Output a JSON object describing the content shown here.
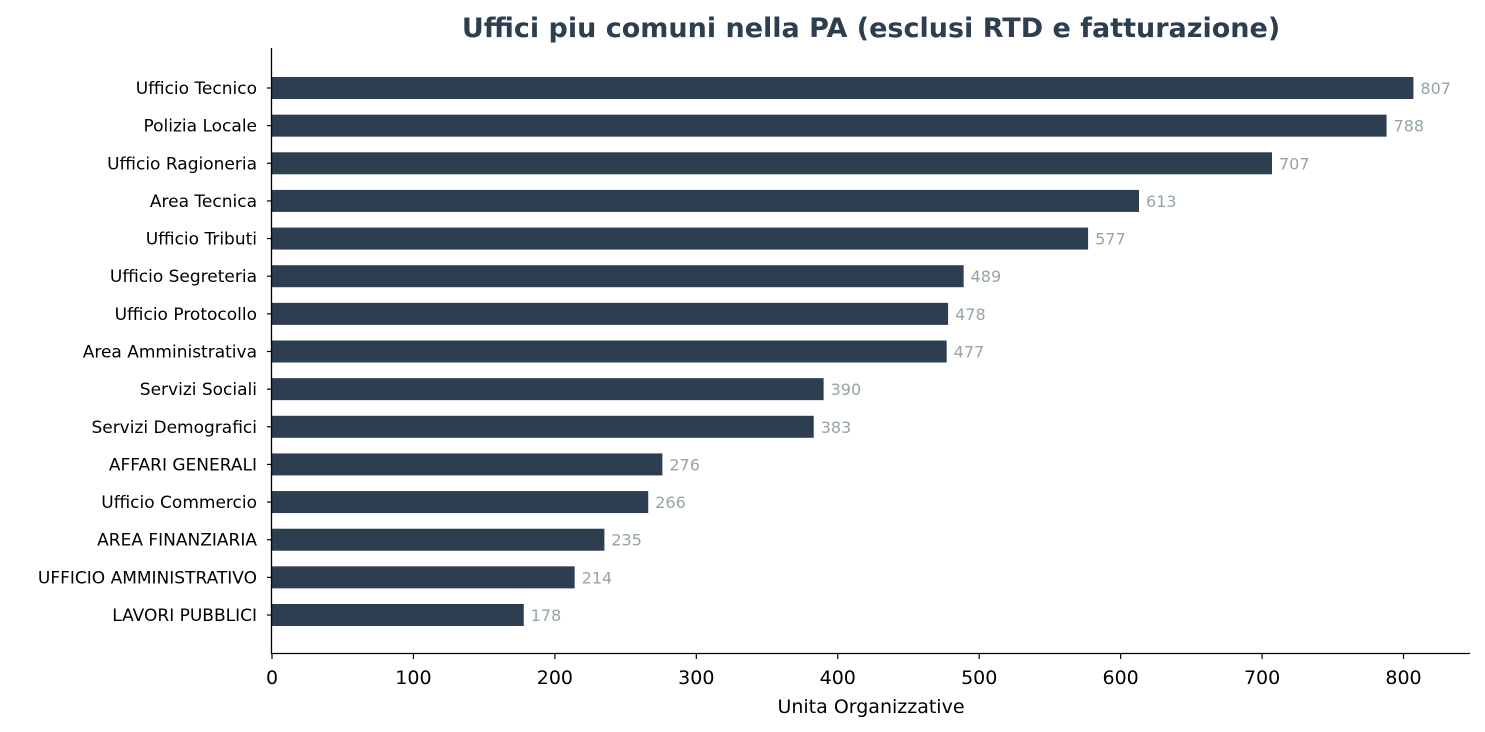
{
  "chart_data": {
    "type": "bar",
    "orientation": "horizontal",
    "title": "Uffici piu comuni nella PA (esclusi RTD e fatturazione)",
    "xlabel": "Unita Organizzative",
    "ylabel": "",
    "categories": [
      "Ufficio Tecnico",
      "Polizia Locale",
      "Ufficio Ragioneria",
      "Area Tecnica",
      "Ufficio Tributi",
      "Ufficio Segreteria",
      "Ufficio Protocollo",
      "Area Amministrativa",
      "Servizi Sociali",
      "Servizi Demografici",
      "AFFARI GENERALI",
      "Ufficio Commercio",
      "AREA FINANZIARIA",
      "UFFICIO AMMINISTRATIVO",
      "LAVORI PUBBLICI"
    ],
    "values": [
      807,
      788,
      707,
      613,
      577,
      489,
      478,
      477,
      390,
      383,
      276,
      266,
      235,
      214,
      178
    ],
    "value_labels": [
      "807",
      "788",
      "707",
      "613",
      "577",
      "489",
      "478",
      "477",
      "390",
      "383",
      "276",
      "266",
      "235",
      "214",
      "178"
    ],
    "xlim": [
      0,
      847
    ],
    "xticks": [
      0,
      100,
      200,
      300,
      400,
      500,
      600,
      700,
      800
    ],
    "xtick_labels": [
      "0",
      "100",
      "200",
      "300",
      "400",
      "500",
      "600",
      "700",
      "800"
    ],
    "grid": false,
    "legend": "none",
    "colors": {
      "bar": "#2d3e50",
      "value_label": "#95a5a6",
      "title": "#2d3e50",
      "axis": "#000000"
    }
  }
}
